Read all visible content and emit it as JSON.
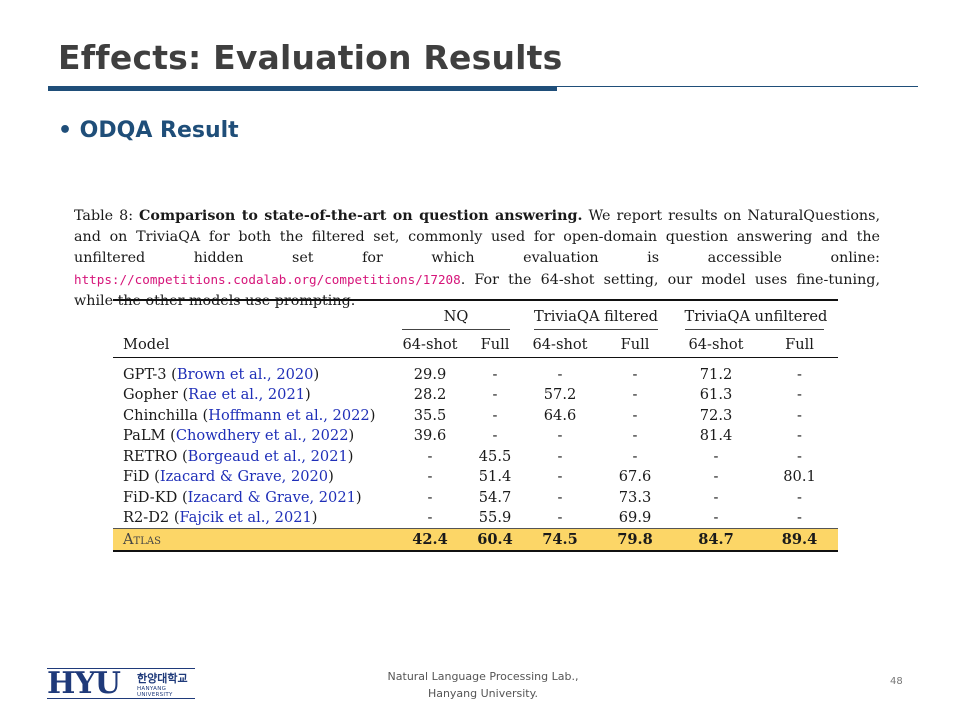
{
  "slide": {
    "title": "Effects: Evaluation Results",
    "bullet": "ODQA Result",
    "page_number": "48"
  },
  "caption": {
    "label": "Table 8:",
    "bold": "Comparison to state-of-the-art on question answering.",
    "text1": "We report results on NaturalQuestions, and on TriviaQA for both the filtered set, commonly used for open-domain question answering and the unfiltered hidden set for which evaluation is accessible online:",
    "url": "https://competitions.codalab.org/competitions/17208",
    "text2": ". For the 64-shot setting, our model uses fine-tuning, while the other models use prompting."
  },
  "table": {
    "groups": [
      "NQ",
      "TriviaQA filtered",
      "TriviaQA unfiltered"
    ],
    "columns": [
      "Model",
      "64-shot",
      "Full",
      "64-shot",
      "Full",
      "64-shot",
      "Full"
    ],
    "rows": [
      {
        "model": "GPT-3",
        "cite": "Brown et al., 2020",
        "values": [
          "29.9",
          "-",
          "-",
          "-",
          "71.2",
          "-"
        ]
      },
      {
        "model": "Gopher",
        "cite": "Rae et al., 2021",
        "values": [
          "28.2",
          "-",
          "57.2",
          "-",
          "61.3",
          "-"
        ]
      },
      {
        "model": "Chinchilla",
        "cite": "Hoffmann et al., 2022",
        "values": [
          "35.5",
          "-",
          "64.6",
          "-",
          "72.3",
          "-"
        ]
      },
      {
        "model": "PaLM",
        "cite": "Chowdhery et al., 2022",
        "values": [
          "39.6",
          "-",
          "-",
          "-",
          "81.4",
          "-"
        ]
      },
      {
        "model": "RETRO",
        "cite": "Borgeaud et al., 2021",
        "values": [
          "-",
          "45.5",
          "-",
          "-",
          "-",
          "-"
        ]
      },
      {
        "model": "FiD",
        "cite": "Izacard & Grave, 2020",
        "values": [
          "-",
          "51.4",
          "-",
          "67.6",
          "-",
          "80.1"
        ]
      },
      {
        "model": "FiD-KD",
        "cite": "Izacard & Grave, 2021",
        "values": [
          "-",
          "54.7",
          "-",
          "73.3",
          "-",
          "-"
        ]
      },
      {
        "model": "R2-D2",
        "cite": "Fajcik et al., 2021",
        "values": [
          "-",
          "55.9",
          "-",
          "69.9",
          "-",
          "-"
        ]
      }
    ],
    "highlight": {
      "model": "Atlas",
      "values": [
        "42.4",
        "60.4",
        "74.5",
        "79.8",
        "84.7",
        "89.4"
      ]
    },
    "highlight_color": "#fcd667"
  },
  "footer": {
    "logo_text": "HYU",
    "logo_korean": "한양대학교",
    "logo_english": "HANYANG UNIVERSITY",
    "line1": "Natural Language Processing  Lab.,",
    "line2": "Hanyang University."
  },
  "colors": {
    "accent": "#1f4e79",
    "citation": "#1f2fb8",
    "url": "#d6157a"
  }
}
